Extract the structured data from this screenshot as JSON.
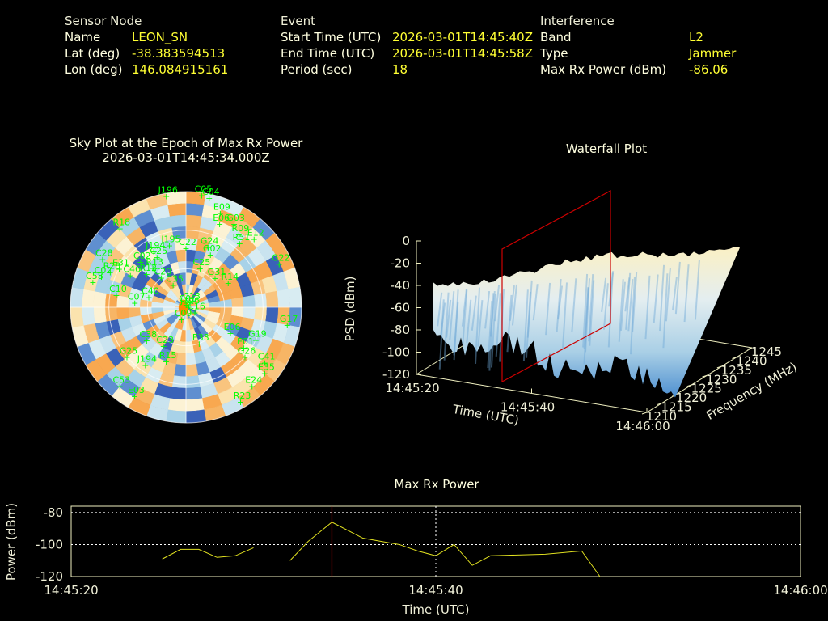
{
  "sensor": {
    "heading": "Sensor Node",
    "rows": [
      {
        "label": "Name",
        "value": "LEON_SN"
      },
      {
        "label": "Lat (deg)",
        "value": "-38.383594513"
      },
      {
        "label": "Lon (deg)",
        "value": "146.084915161"
      }
    ]
  },
  "event": {
    "heading": "Event",
    "rows": [
      {
        "label": "Start Time (UTC)",
        "value": "2026-03-01T14:45:40Z"
      },
      {
        "label": "End Time (UTC)",
        "value": "2026-03-01T14:45:58Z"
      },
      {
        "label": "Period (sec)",
        "value": "18"
      }
    ]
  },
  "interference": {
    "heading": "Interference",
    "rows": [
      {
        "label": "Band",
        "value": "L2"
      },
      {
        "label": "Type",
        "value": "Jammer"
      },
      {
        "label": "Max Rx Power (dBm)",
        "value": "-86.06"
      }
    ]
  },
  "colors": {
    "background": "#000000",
    "text": "#f0f0d8",
    "value": "#ffff33",
    "satellite": "#00ff00",
    "max_line": "#cc0000",
    "power_line": "#e0e020",
    "waterfall_low": "#4d8fd0",
    "waterfall_high": "#fbf0c4",
    "sky_orange": "#f8a850",
    "sky_blue": "#3a62b8",
    "jammer_marker": "#ff8800"
  },
  "chart_data": [
    {
      "type": "scatter",
      "title": "Sky Plot at the Epoch of Max Rx Power",
      "subtitle": "2026-03-01T14:45:34.000Z",
      "polar": true,
      "satellites": [
        {
          "id": "C06",
          "az": 5,
          "el": 88
        },
        {
          "id": "C13",
          "az": 40,
          "el": 85
        },
        {
          "id": "J196",
          "az": 80,
          "el": 88
        },
        {
          "id": "C16",
          "az": 120,
          "el": 82
        },
        {
          "id": "C09",
          "az": 200,
          "el": 80
        },
        {
          "id": "C05",
          "az": 8,
          "el": 2
        },
        {
          "id": "C04",
          "az": 12,
          "el": 3
        },
        {
          "id": "J196",
          "az": 350,
          "el": 2
        },
        {
          "id": "E09",
          "az": 20,
          "el": 12
        },
        {
          "id": "E06",
          "az": 22,
          "el": 20
        },
        {
          "id": "G03",
          "az": 30,
          "el": 15
        },
        {
          "id": "R09",
          "az": 36,
          "el": 20
        },
        {
          "id": "R51",
          "az": 40,
          "el": 25
        },
        {
          "id": "E12",
          "az": 45,
          "el": 15
        },
        {
          "id": "G22",
          "az": 65,
          "el": 10
        },
        {
          "id": "G24",
          "az": 20,
          "el": 40
        },
        {
          "id": "G02",
          "az": 25,
          "el": 45
        },
        {
          "id": "R18",
          "az": 320,
          "el": 10
        },
        {
          "id": "C28",
          "az": 300,
          "el": 15
        },
        {
          "id": "J195",
          "az": 345,
          "el": 40
        },
        {
          "id": "C22",
          "az": 0,
          "el": 44
        },
        {
          "id": "J194",
          "az": 330,
          "el": 40
        },
        {
          "id": "C02",
          "az": 315,
          "el": 40
        },
        {
          "id": "C25",
          "az": 330,
          "el": 45
        },
        {
          "id": "R12",
          "az": 310,
          "el": 50
        },
        {
          "id": "C46",
          "az": 300,
          "el": 40
        },
        {
          "id": "R13",
          "az": 320,
          "el": 50
        },
        {
          "id": "C20",
          "az": 320,
          "el": 60
        },
        {
          "id": "C35",
          "az": 330,
          "el": 70
        },
        {
          "id": "C25",
          "az": 20,
          "el": 58
        },
        {
          "id": "G31",
          "az": 45,
          "el": 58
        },
        {
          "id": "R14",
          "az": 60,
          "el": 52
        },
        {
          "id": "C10",
          "az": 280,
          "el": 35
        },
        {
          "id": "C07",
          "az": 275,
          "el": 50
        },
        {
          "id": "C40",
          "az": 285,
          "el": 60
        },
        {
          "id": "E31",
          "az": 300,
          "el": 30
        },
        {
          "id": "R28",
          "az": 295,
          "el": 25
        },
        {
          "id": "C02",
          "az": 290,
          "el": 20
        },
        {
          "id": "C58",
          "az": 285,
          "el": 15
        },
        {
          "id": "C23",
          "az": 210,
          "el": 55
        },
        {
          "id": "C38",
          "az": 230,
          "el": 50
        },
        {
          "id": "E33",
          "az": 160,
          "el": 60
        },
        {
          "id": "E06",
          "az": 120,
          "el": 50
        },
        {
          "id": "G19",
          "az": 115,
          "el": 30
        },
        {
          "id": "G17",
          "az": 100,
          "el": 10
        },
        {
          "id": "E01",
          "az": 125,
          "el": 35
        },
        {
          "id": "G26",
          "az": 130,
          "el": 30
        },
        {
          "id": "C41",
          "az": 125,
          "el": 15
        },
        {
          "id": "E35",
          "az": 130,
          "el": 10
        },
        {
          "id": "E24",
          "az": 140,
          "el": 10
        },
        {
          "id": "R23",
          "az": 150,
          "el": 5
        },
        {
          "id": "R15",
          "az": 200,
          "el": 45
        },
        {
          "id": "G25",
          "az": 230,
          "el": 30
        },
        {
          "id": "J194",
          "az": 215,
          "el": 35
        },
        {
          "id": "C53",
          "az": 220,
          "el": 10
        },
        {
          "id": "E03",
          "az": 210,
          "el": 10
        }
      ],
      "jammer": {
        "az": 260,
        "el": 88
      }
    },
    {
      "type": "area",
      "title": "Waterfall Plot",
      "xlabel": "Time (UTC)",
      "ylabel": "Frequency (MHz)",
      "zlabel": "PSD (dBm)",
      "x_ticks": [
        "14:45:20",
        "14:45:40",
        "14:46:00"
      ],
      "y_ticks": [
        1210,
        1215,
        1220,
        1225,
        1230,
        1235,
        1240,
        1245
      ],
      "z_ticks": [
        0,
        -20,
        -40,
        -60,
        -80,
        -100,
        -120
      ],
      "zlim": [
        -120,
        0
      ],
      "max_epoch": "14:45:34"
    },
    {
      "type": "line",
      "title": "Max Rx Power",
      "xlabel": "Time (UTC)",
      "ylabel": "Power (dBm)",
      "x_ticks": [
        "14:45:20",
        "14:45:40",
        "14:46:00"
      ],
      "y_ticks": [
        -80,
        -100,
        -120
      ],
      "xlim": [
        0,
        40
      ],
      "ylim": [
        -120,
        -76
      ],
      "x_unit": "seconds after 14:45:20",
      "grid": true,
      "max_marker_x": 14.3,
      "segments": [
        [
          [
            5,
            -109
          ],
          [
            6,
            -103
          ],
          [
            7,
            -103
          ],
          [
            8,
            -108
          ],
          [
            9,
            -107
          ],
          [
            10,
            -102
          ]
        ],
        [
          [
            12,
            -110
          ],
          [
            13,
            -98
          ],
          [
            14.3,
            -86
          ],
          [
            16,
            -96
          ],
          [
            18,
            -100
          ],
          [
            19,
            -104
          ],
          [
            20,
            -107
          ],
          [
            21,
            -100
          ],
          [
            22,
            -113
          ],
          [
            23,
            -107
          ],
          [
            26,
            -106
          ],
          [
            28,
            -104
          ],
          [
            29,
            -120
          ]
        ]
      ]
    }
  ]
}
